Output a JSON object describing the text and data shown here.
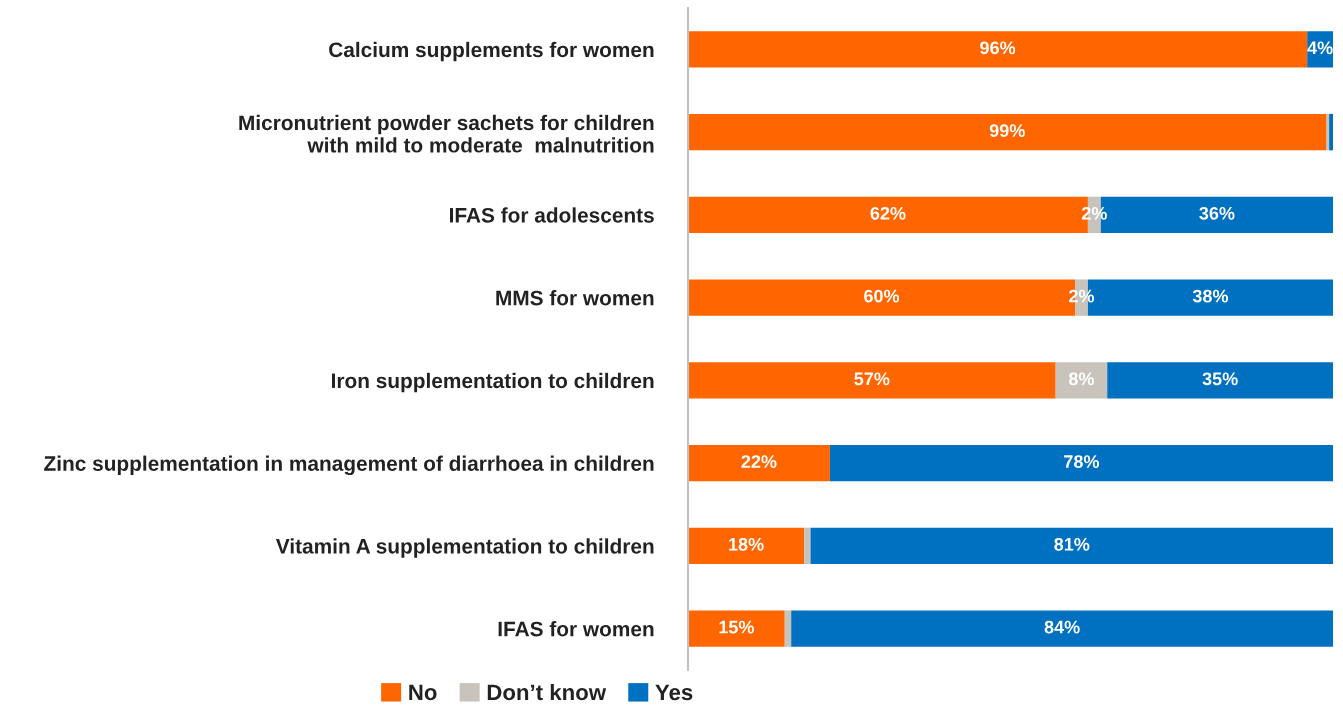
{
  "chart_data": {
    "type": "bar",
    "orientation": "horizontal",
    "stacked": true,
    "categories": [
      "Calcium supplements for women",
      "Micronutrient powder sachets for children\nwith mild to moderate  malnutrition",
      "IFAS for adolescents",
      "MMS for women",
      "Iron supplementation to children",
      "Zinc supplementation in management of diarrhoea in children",
      "Vitamin A supplementation to children",
      "IFAS for women"
    ],
    "series": [
      {
        "name": "No",
        "color": "#ff6600",
        "values": [
          96,
          99,
          62,
          60,
          57,
          22,
          18,
          15
        ],
        "value_labels": [
          "96%",
          "99%",
          "62%",
          "60%",
          "57%",
          "22%",
          "18%",
          "15%"
        ]
      },
      {
        "name": "Don’t know",
        "color": "#c8c4bc",
        "values": [
          0,
          0.4,
          2,
          2,
          8,
          0,
          1,
          1
        ],
        "value_labels": [
          null,
          null,
          "2%",
          "2%",
          "8%",
          null,
          null,
          null
        ]
      },
      {
        "name": "Yes",
        "color": "#0070c0",
        "values": [
          4,
          0.6,
          36,
          38,
          35,
          78,
          81,
          84
        ],
        "value_labels": [
          "4%",
          null,
          "36%",
          "38%",
          "35%",
          "78%",
          "81%",
          "84%"
        ]
      }
    ],
    "xlim": [
      0,
      100
    ],
    "tick_labels": "y",
    "legend": "bottom",
    "grid": false
  }
}
